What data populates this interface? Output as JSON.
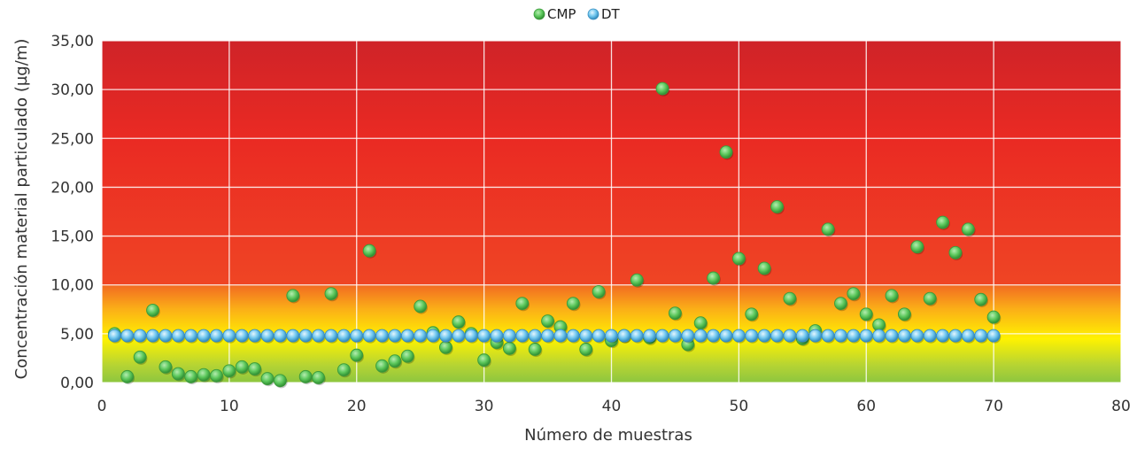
{
  "chart_data": {
    "type": "scatter",
    "title": "",
    "xlabel": "Número de muestras",
    "ylabel": "Concentración  material particulado (µg/m)",
    "xlim": [
      0,
      80
    ],
    "ylim": [
      0,
      35
    ],
    "xticks": [
      0,
      10,
      20,
      30,
      40,
      50,
      60,
      70,
      80
    ],
    "yticks": [
      0,
      5,
      10,
      15,
      20,
      25,
      30,
      35
    ],
    "xtick_labels": [
      "0",
      "10",
      "20",
      "30",
      "40",
      "50",
      "60",
      "70",
      "80"
    ],
    "ytick_labels": [
      "0,00",
      "5,00",
      "10,00",
      "15,00",
      "20,00",
      "25,00",
      "30,00",
      "35,00"
    ],
    "grid": true,
    "legend_position": "top-center",
    "background_bands": [
      {
        "range": [
          0,
          10
        ],
        "colors": [
          "#8dc63f",
          "#fff200",
          "#f7941d"
        ]
      },
      {
        "range": [
          10,
          35
        ],
        "colors": [
          "#ef3b24",
          "#d2232a"
        ]
      }
    ],
    "series": [
      {
        "name": "CMP",
        "color": "#5cc85c",
        "x": [
          1,
          2,
          3,
          4,
          5,
          6,
          7,
          8,
          9,
          10,
          11,
          12,
          13,
          14,
          15,
          16,
          17,
          18,
          19,
          20,
          21,
          22,
          23,
          24,
          25,
          26,
          27,
          28,
          29,
          30,
          31,
          32,
          33,
          34,
          35,
          36,
          37,
          38,
          39,
          40,
          41,
          42,
          43,
          44,
          45,
          46,
          47,
          48,
          49,
          50,
          51,
          52,
          53,
          54,
          55,
          56,
          57,
          58,
          59,
          60,
          61,
          62,
          63,
          64,
          65,
          66,
          67,
          68,
          69,
          70
        ],
        "y": [
          5.0,
          0.6,
          2.6,
          7.4,
          1.6,
          0.9,
          0.6,
          0.8,
          0.7,
          1.2,
          1.6,
          1.4,
          0.4,
          0.2,
          8.9,
          0.6,
          0.5,
          9.1,
          1.3,
          2.8,
          13.5,
          1.7,
          2.2,
          2.7,
          7.8,
          5.1,
          3.6,
          6.2,
          5.0,
          2.3,
          4.1,
          3.5,
          8.1,
          3.4,
          6.3,
          5.7,
          8.1,
          3.4,
          9.3,
          4.3,
          4.8,
          10.5,
          4.6,
          30.1,
          7.1,
          3.9,
          6.1,
          10.7,
          23.6,
          12.7,
          7.0,
          11.7,
          18.0,
          8.6,
          4.5,
          5.3,
          15.7,
          8.1,
          9.1,
          7.0,
          5.9,
          8.9,
          7.0,
          13.9,
          8.6,
          16.4,
          13.3,
          15.7,
          8.5,
          6.7
        ]
      },
      {
        "name": "DT",
        "color": "#6ec6ee",
        "x": [
          1,
          2,
          3,
          4,
          5,
          6,
          7,
          8,
          9,
          10,
          11,
          12,
          13,
          14,
          15,
          16,
          17,
          18,
          19,
          20,
          21,
          22,
          23,
          24,
          25,
          26,
          27,
          28,
          29,
          30,
          31,
          32,
          33,
          34,
          35,
          36,
          37,
          38,
          39,
          40,
          41,
          42,
          43,
          44,
          45,
          46,
          47,
          48,
          49,
          50,
          51,
          52,
          53,
          54,
          55,
          56,
          57,
          58,
          59,
          60,
          61,
          62,
          63,
          64,
          65,
          66,
          67,
          68,
          69,
          70
        ],
        "y": [
          4.8,
          4.8,
          4.8,
          4.8,
          4.8,
          4.8,
          4.8,
          4.8,
          4.8,
          4.8,
          4.8,
          4.8,
          4.8,
          4.8,
          4.8,
          4.8,
          4.8,
          4.8,
          4.8,
          4.8,
          4.8,
          4.8,
          4.8,
          4.8,
          4.8,
          4.8,
          4.8,
          4.8,
          4.8,
          4.8,
          4.8,
          4.8,
          4.8,
          4.8,
          4.8,
          4.8,
          4.8,
          4.8,
          4.8,
          4.8,
          4.8,
          4.8,
          4.8,
          4.8,
          4.8,
          4.8,
          4.8,
          4.8,
          4.8,
          4.8,
          4.8,
          4.8,
          4.8,
          4.8,
          4.8,
          4.8,
          4.8,
          4.8,
          4.8,
          4.8,
          4.8,
          4.8,
          4.8,
          4.8,
          4.8,
          4.8,
          4.8,
          4.8,
          4.8,
          4.8
        ]
      }
    ]
  }
}
